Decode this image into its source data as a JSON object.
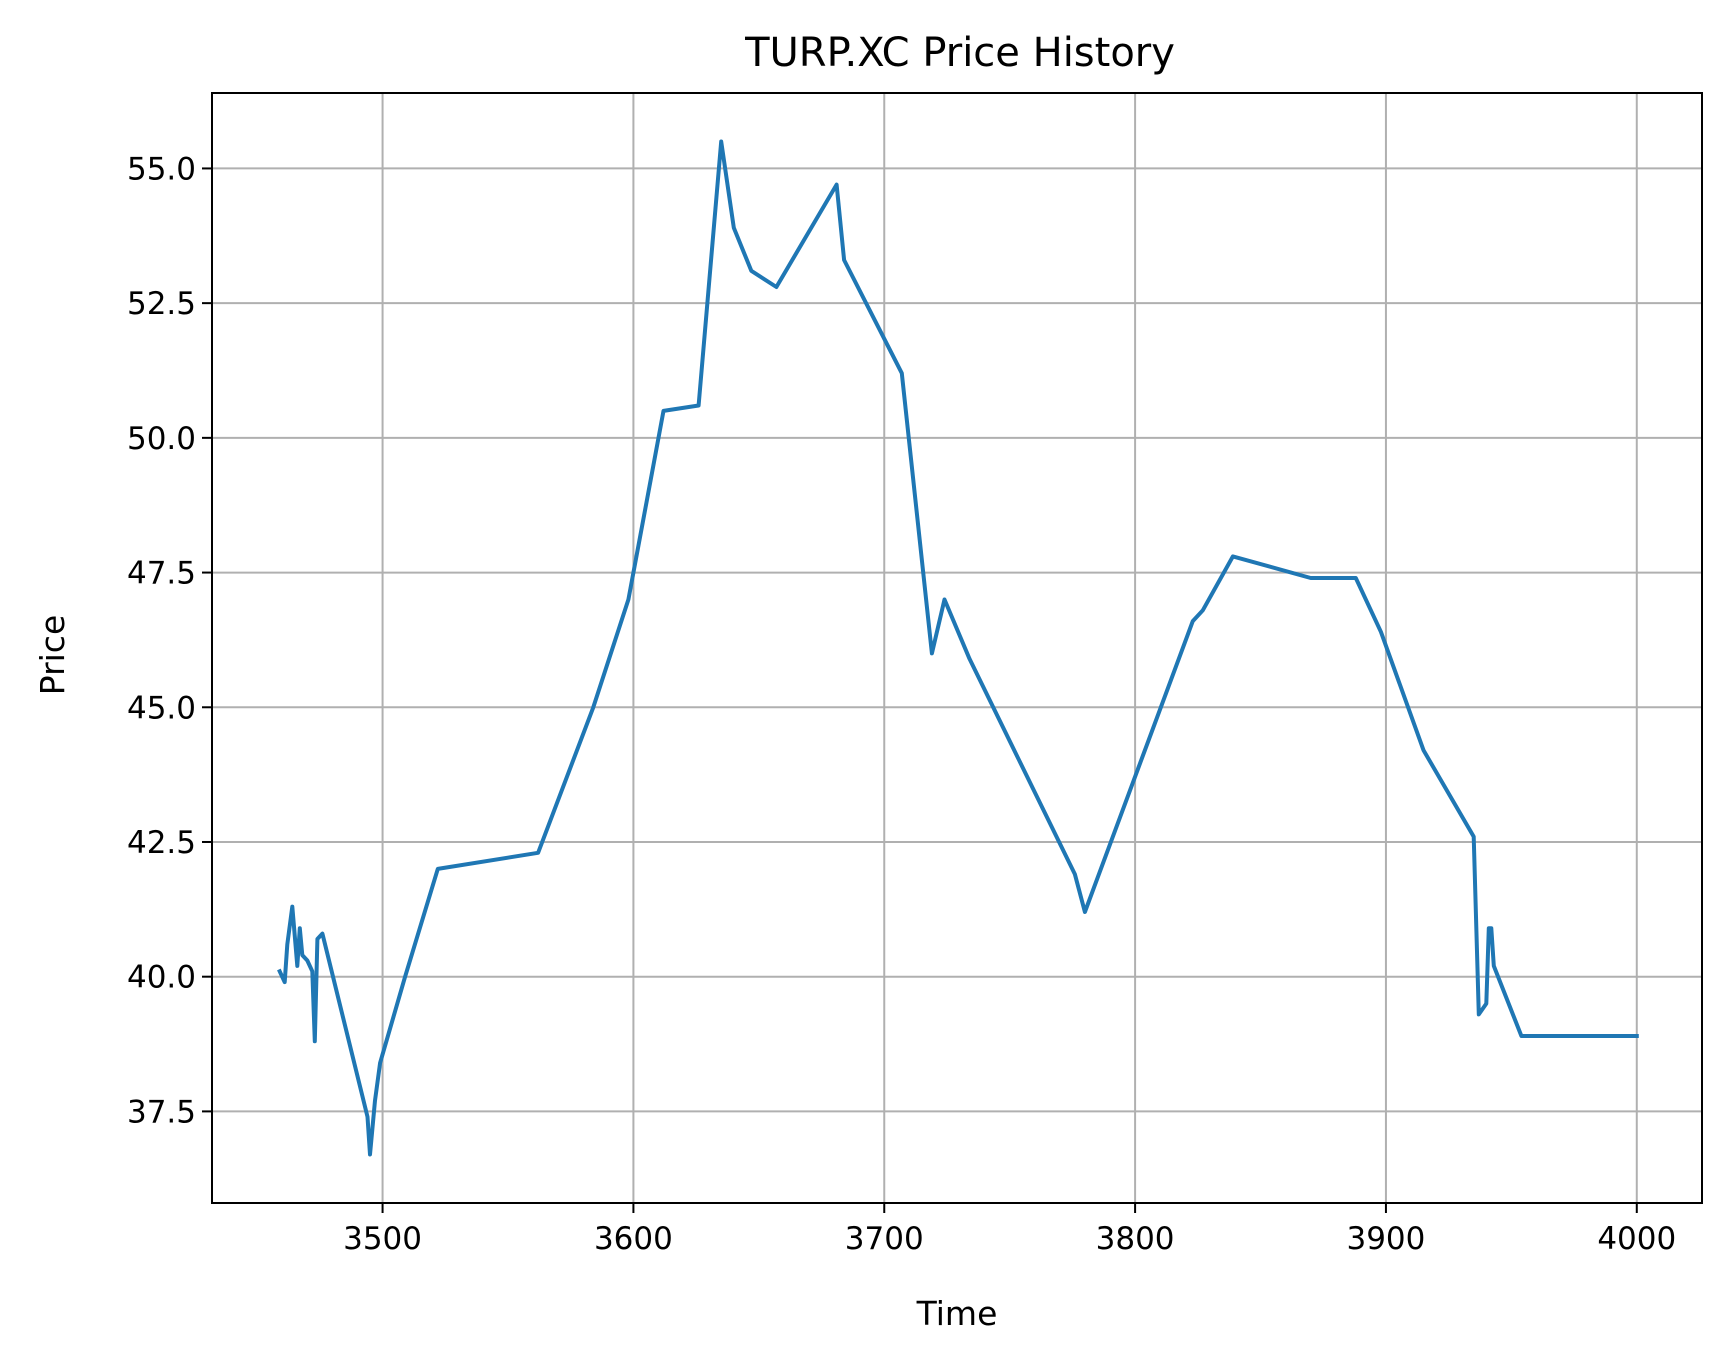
{
  "chart_data": {
    "type": "line",
    "title": "TURP.XC Price History",
    "xlabel": "Time",
    "ylabel": "Price",
    "xlim": [
      3432,
      4026
    ],
    "ylim": [
      35.8,
      56.4
    ],
    "xticks": [
      3500,
      3600,
      3700,
      3800,
      3900,
      4000
    ],
    "xtick_labels": [
      "3500",
      "3600",
      "3700",
      "3800",
      "3900",
      "4000"
    ],
    "yticks": [
      37.5,
      40.0,
      42.5,
      45.0,
      47.5,
      50.0,
      52.5,
      55.0
    ],
    "ytick_labels": [
      "37.5",
      "40.0",
      "42.5",
      "45.0",
      "47.5",
      "50.0",
      "52.5",
      "55.0"
    ],
    "grid": true,
    "color": "#1f77b4",
    "series": [
      {
        "x": [
          3459,
          3461,
          3462,
          3464,
          3466,
          3467,
          3468,
          3470,
          3472,
          3473,
          3474,
          3476,
          3494,
          3495,
          3497,
          3499,
          3509,
          3522,
          3562,
          3584,
          3598,
          3608,
          3612,
          3626,
          3635,
          3640,
          3647,
          3657,
          3681,
          3684,
          3707,
          3719,
          3724,
          3734,
          3776,
          3780,
          3823,
          3827,
          3839,
          3870,
          3888,
          3898,
          3915,
          3935,
          3937,
          3940,
          3941,
          3942,
          3943,
          3954,
          4000
        ],
        "y": [
          40.1,
          39.9,
          40.6,
          41.3,
          40.2,
          40.9,
          40.4,
          40.3,
          40.1,
          38.8,
          40.7,
          40.8,
          37.4,
          36.7,
          37.7,
          38.4,
          40.0,
          42.0,
          42.3,
          45.0,
          47.0,
          49.5,
          50.5,
          50.6,
          55.5,
          53.9,
          53.1,
          52.8,
          54.7,
          53.3,
          51.2,
          46.0,
          47.0,
          45.9,
          41.9,
          41.2,
          46.6,
          46.8,
          47.8,
          47.4,
          47.4,
          46.4,
          44.2,
          42.6,
          39.3,
          39.5,
          40.9,
          40.9,
          40.2,
          38.9,
          38.9
        ]
      }
    ]
  }
}
